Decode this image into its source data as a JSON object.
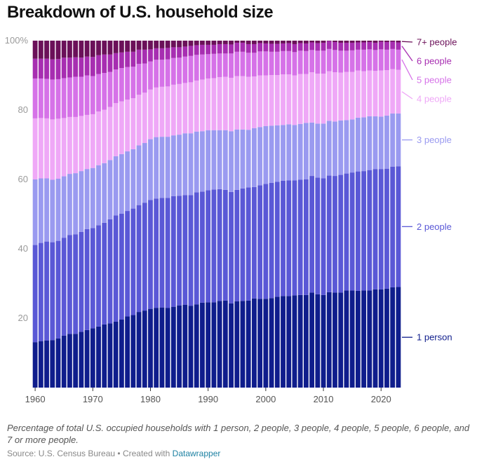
{
  "title": "Breakdown of U.S. household size",
  "note": "Percentage of total U.S. occupied households with 1 person, 2 people, 3 people, 4 people, 5 people, 6 people, and 7 or more people.",
  "source": {
    "prefix": "Source: U.S. Census Bureau • Created with ",
    "tool": "Datawrapper"
  },
  "chart_data": {
    "type": "bar",
    "stacked": true,
    "normalized": true,
    "x_start": 1960,
    "x_end": 2023,
    "ylim": [
      0,
      100
    ],
    "y_ticks": [
      20,
      40,
      60,
      80,
      100
    ],
    "y_tick_labels": [
      "20",
      "40",
      "60",
      "80",
      "100%"
    ],
    "x_ticks": [
      1960,
      1970,
      1980,
      1990,
      2000,
      2010,
      2020
    ],
    "x_tick_labels": [
      "1960",
      "1970",
      "1980",
      "1990",
      "2000",
      "2010",
      "2020"
    ],
    "legend_position": "right, labels at series ends",
    "series": [
      {
        "name": "1 person",
        "color": "#0f1d8c",
        "values": [
          13.1,
          13.4,
          13.6,
          13.7,
          14.2,
          15.0,
          15.5,
          15.5,
          16.1,
          16.6,
          17.1,
          17.6,
          18.2,
          18.5,
          19.0,
          19.6,
          20.5,
          20.9,
          21.8,
          22.2,
          22.7,
          23.0,
          23.1,
          23.0,
          23.3,
          23.7,
          23.9,
          23.6,
          24.0,
          24.5,
          24.6,
          24.6,
          25.0,
          25.1,
          24.3,
          24.9,
          25.0,
          25.1,
          25.7,
          25.6,
          25.6,
          25.8,
          26.2,
          26.4,
          26.4,
          26.6,
          26.7,
          26.7,
          27.4,
          26.9,
          26.7,
          27.5,
          27.4,
          27.4,
          28.0,
          28.0,
          27.9,
          28.0,
          28.0,
          28.3,
          28.3,
          28.5,
          28.9,
          29.0
        ]
      },
      {
        "name": "2 people",
        "color": "#5a58d6",
        "values": [
          28.0,
          28.3,
          28.5,
          28.2,
          28.1,
          28.2,
          28.5,
          28.7,
          28.8,
          29.1,
          28.9,
          29.2,
          29.3,
          30.0,
          30.6,
          30.5,
          30.4,
          30.7,
          30.8,
          31.1,
          31.4,
          31.5,
          31.6,
          31.7,
          31.9,
          31.6,
          31.6,
          31.9,
          32.3,
          32.0,
          32.3,
          32.5,
          32.2,
          31.9,
          32.1,
          32.1,
          32.4,
          32.6,
          32.1,
          32.7,
          33.1,
          33.2,
          33.1,
          33.2,
          33.3,
          33.1,
          33.2,
          33.3,
          33.6,
          33.6,
          33.6,
          33.6,
          33.6,
          33.9,
          33.7,
          34.0,
          34.4,
          34.4,
          34.7,
          34.7,
          34.7,
          34.6,
          34.8,
          34.8
        ]
      },
      {
        "name": "3 people",
        "color": "#9a9af0",
        "values": [
          18.9,
          18.6,
          18.2,
          18.0,
          17.9,
          17.7,
          17.6,
          17.6,
          17.5,
          17.3,
          17.3,
          17.3,
          17.2,
          17.1,
          17.1,
          17.2,
          17.2,
          17.1,
          17.2,
          17.2,
          17.5,
          17.7,
          17.6,
          17.6,
          17.5,
          17.6,
          17.8,
          17.8,
          17.5,
          17.4,
          17.3,
          17.1,
          17.0,
          17.2,
          17.5,
          17.4,
          17.0,
          16.6,
          17.0,
          16.8,
          16.7,
          16.5,
          16.3,
          16.1,
          16.2,
          16.0,
          16.1,
          16.3,
          15.4,
          15.6,
          15.8,
          15.8,
          15.7,
          15.7,
          15.4,
          15.3,
          15.5,
          15.5,
          15.5,
          15.2,
          15.1,
          15.3,
          15.3,
          15.2
        ]
      },
      {
        "name": "4 people",
        "color": "#efa8f7",
        "values": [
          17.6,
          17.4,
          17.3,
          17.4,
          17.3,
          16.8,
          16.4,
          16.2,
          15.9,
          15.6,
          15.5,
          15.5,
          15.4,
          15.3,
          15.3,
          15.2,
          14.9,
          14.7,
          14.6,
          14.5,
          14.3,
          14.3,
          14.4,
          14.5,
          14.6,
          14.6,
          14.5,
          14.7,
          14.7,
          14.9,
          14.9,
          15.0,
          15.3,
          15.4,
          15.4,
          15.4,
          15.4,
          15.3,
          14.9,
          14.9,
          14.6,
          14.6,
          14.5,
          14.6,
          14.4,
          14.3,
          14.4,
          14.1,
          14.5,
          14.4,
          14.4,
          14.3,
          14.2,
          13.8,
          13.9,
          13.7,
          13.6,
          13.3,
          13.2,
          13.1,
          13.3,
          13.1,
          12.8,
          12.6
        ]
      },
      {
        "name": "5 people",
        "color": "#d672e8",
        "values": [
          11.5,
          11.4,
          11.4,
          11.5,
          11.4,
          11.5,
          11.4,
          11.6,
          11.3,
          11.4,
          11.0,
          10.8,
          10.6,
          10.1,
          9.7,
          9.6,
          9.4,
          9.1,
          8.9,
          8.4,
          8.1,
          8.0,
          7.8,
          7.8,
          7.7,
          7.6,
          7.6,
          7.6,
          7.4,
          7.2,
          7.0,
          7.0,
          6.8,
          6.7,
          7.0,
          7.0,
          7.0,
          6.9,
          6.8,
          6.9,
          6.9,
          6.7,
          6.7,
          6.7,
          6.7,
          6.7,
          6.7,
          6.6,
          6.4,
          6.6,
          6.6,
          6.4,
          6.4,
          6.3,
          6.1,
          6.2,
          6.0,
          6.2,
          6.1,
          6.0,
          6.1,
          5.9,
          5.8,
          5.8
        ]
      },
      {
        "name": "6 people",
        "color": "#a72eb1",
        "values": [
          5.7,
          5.7,
          5.8,
          5.8,
          5.8,
          5.9,
          5.7,
          5.6,
          5.5,
          5.4,
          5.5,
          5.4,
          5.3,
          5.0,
          4.7,
          4.5,
          4.4,
          4.3,
          4.1,
          4.0,
          3.5,
          3.3,
          3.3,
          3.3,
          3.1,
          3.0,
          2.9,
          2.9,
          2.8,
          2.8,
          2.7,
          2.6,
          2.7,
          2.7,
          2.6,
          2.6,
          2.6,
          2.5,
          2.5,
          2.4,
          2.3,
          2.3,
          2.3,
          2.2,
          2.3,
          2.3,
          2.2,
          2.2,
          2.2,
          2.2,
          2.3,
          2.3,
          2.3,
          2.3,
          2.3,
          2.2,
          2.1,
          2.1,
          2.1,
          2.1,
          2.2,
          2.2,
          2.1,
          2.1
        ]
      },
      {
        "name": "7+ people",
        "color": "#6b1059",
        "values": [
          5.2,
          5.2,
          5.2,
          5.4,
          5.3,
          4.9,
          4.9,
          4.8,
          4.9,
          4.6,
          4.7,
          4.2,
          4.0,
          4.0,
          3.6,
          3.4,
          3.2,
          3.2,
          2.6,
          2.6,
          2.5,
          2.2,
          2.2,
          2.1,
          1.9,
          1.9,
          1.7,
          1.5,
          1.3,
          1.2,
          1.2,
          1.2,
          1.0,
          1.0,
          1.1,
          0.6,
          0.6,
          1.0,
          1.0,
          0.7,
          0.8,
          0.9,
          0.9,
          0.8,
          0.7,
          1.0,
          0.7,
          0.8,
          0.5,
          0.7,
          0.6,
          0.1,
          0.4,
          0.6,
          0.6,
          0.6,
          0.5,
          0.5,
          0.4,
          0.6,
          0.3,
          0.4,
          0.3,
          0.5
        ]
      }
    ]
  }
}
